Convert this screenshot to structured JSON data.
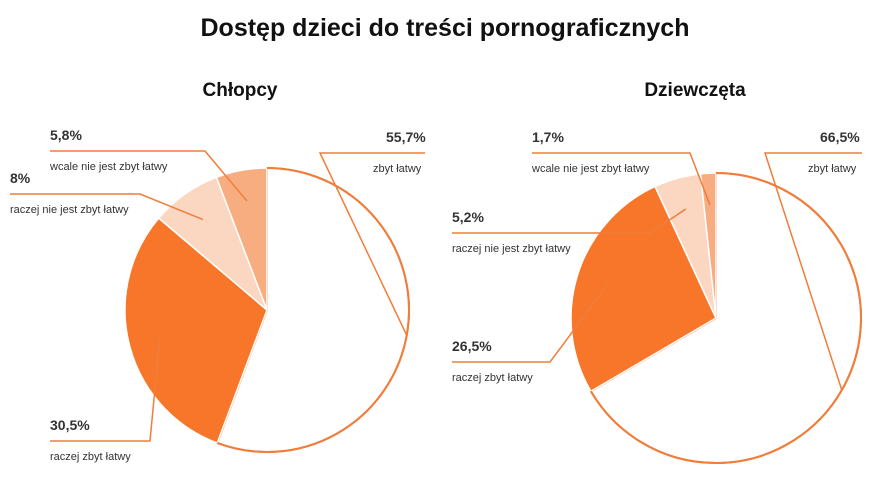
{
  "title": "Dostęp dzieci do treści pornograficznych",
  "colors": {
    "outline": "#f07d3a",
    "zbyt_latwy": "#ffffff",
    "raczej_zbyt_latwy": "#f7762a",
    "raczej_nie": "#fbd7c2",
    "wcale_nie": "#f8ad80"
  },
  "chart_data": [
    {
      "type": "pie",
      "title": "Chłopcy",
      "unit": "%",
      "slices": [
        {
          "label": "zbyt łatwy",
          "value": 55.7,
          "display": "55,7%"
        },
        {
          "label": "raczej zbyt łatwy",
          "value": 30.5,
          "display": "30,5%"
        },
        {
          "label": "raczej nie jest zbyt łatwy",
          "value": 8,
          "display": "8%"
        },
        {
          "label": "wcale nie jest zbyt łatwy",
          "value": 5.8,
          "display": "5,8%"
        }
      ]
    },
    {
      "type": "pie",
      "title": "Dziewczęta",
      "unit": "%",
      "slices": [
        {
          "label": "zbyt łatwy",
          "value": 66.5,
          "display": "66,5%"
        },
        {
          "label": "raczej zbyt łatwy",
          "value": 26.5,
          "display": "26,5%"
        },
        {
          "label": "raczej nie jest zbyt łatwy",
          "value": 5.2,
          "display": "5,2%"
        },
        {
          "label": "wcale nie jest zbyt łatwy",
          "value": 1.7,
          "display": "1,7%"
        }
      ]
    }
  ]
}
